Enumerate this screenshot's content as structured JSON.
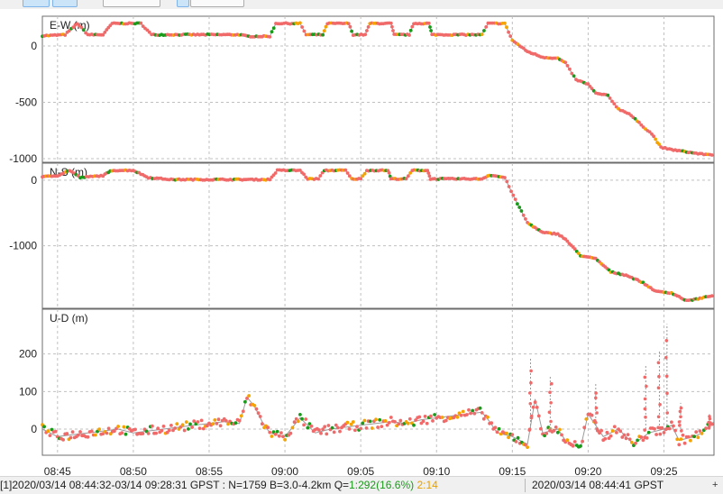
{
  "toolbar": {
    "buttons": [
      {
        "name": "toolbar-button-1",
        "selected": true
      },
      {
        "name": "toolbar-button-2",
        "selected": true
      },
      {
        "name": "toolbar-button-3",
        "selected": false
      },
      {
        "name": "toolbar-button-4",
        "selected": true
      },
      {
        "name": "toolbar-button-5",
        "selected": false
      }
    ]
  },
  "status": {
    "prefix": "[1]",
    "span": "2020/03/14 08:44:32-03/14 09:28:31 GPST : N=1759 B=3.0-4.2km Q=",
    "q1": "1:292(16.6%)",
    "q2": "2:14",
    "cursor_time": "2020/03/14 08:44:41 GPST",
    "grip": "+"
  },
  "colors": {
    "fix": "#1a9a1a",
    "float": "#f5a300",
    "single": "#f06a6a",
    "ref": "#9a9a9a",
    "grid": "#c0c0c0"
  },
  "chart_data": [
    {
      "type": "scatter",
      "label": "E-W (m)",
      "ylim": [
        -1000,
        200
      ],
      "yticks": [
        0,
        -500,
        -1000
      ],
      "xlim": [
        44.0,
        88.3
      ],
      "xticks": [
        "08:45",
        "08:50",
        "08:55",
        "09:00",
        "09:05",
        "09:10",
        "09:15",
        "09:20",
        "09:25"
      ],
      "series_points": [
        [
          44.0,
          90
        ],
        [
          45.5,
          100
        ],
        [
          46.3,
          200
        ],
        [
          47.0,
          100
        ],
        [
          48.0,
          100
        ],
        [
          48.6,
          200
        ],
        [
          50.5,
          200
        ],
        [
          51.2,
          100
        ],
        [
          57.0,
          100
        ],
        [
          57.6,
          85
        ],
        [
          59.0,
          85
        ],
        [
          59.4,
          200
        ],
        [
          61.0,
          200
        ],
        [
          61.4,
          100
        ],
        [
          62.5,
          100
        ],
        [
          62.8,
          200
        ],
        [
          64.2,
          200
        ],
        [
          64.5,
          100
        ],
        [
          65.3,
          100
        ],
        [
          65.6,
          200
        ],
        [
          67.0,
          200
        ],
        [
          67.2,
          100
        ],
        [
          68.2,
          100
        ],
        [
          68.5,
          200
        ],
        [
          69.5,
          200
        ],
        [
          69.7,
          100
        ],
        [
          73.0,
          100
        ],
        [
          73.4,
          200
        ],
        [
          74.5,
          200
        ],
        [
          75.0,
          50
        ],
        [
          76.0,
          -50
        ],
        [
          77.0,
          -100
        ],
        [
          78.0,
          -110
        ],
        [
          78.5,
          -150
        ],
        [
          79.2,
          -300
        ],
        [
          80.0,
          -340
        ],
        [
          80.5,
          -420
        ],
        [
          81.3,
          -440
        ],
        [
          82.0,
          -560
        ],
        [
          82.7,
          -600
        ],
        [
          83.5,
          -700
        ],
        [
          84.2,
          -780
        ],
        [
          84.8,
          -900
        ],
        [
          85.5,
          -920
        ],
        [
          86.5,
          -940
        ],
        [
          87.5,
          -960
        ],
        [
          88.3,
          -965
        ]
      ]
    },
    {
      "type": "scatter",
      "label": "N-S (m)",
      "ylim": [
        -1900,
        150
      ],
      "yticks": [
        0,
        -1000
      ],
      "xlim": [
        44.0,
        88.3
      ],
      "xticks": [],
      "series_points": [
        [
          44.0,
          50
        ],
        [
          45.0,
          70
        ],
        [
          45.8,
          150
        ],
        [
          46.5,
          40
        ],
        [
          48.0,
          70
        ],
        [
          48.6,
          150
        ],
        [
          50.0,
          150
        ],
        [
          51.0,
          40
        ],
        [
          52.5,
          10
        ],
        [
          59.0,
          10
        ],
        [
          59.5,
          150
        ],
        [
          61.0,
          150
        ],
        [
          61.5,
          20
        ],
        [
          62.2,
          20
        ],
        [
          62.6,
          150
        ],
        [
          64.0,
          150
        ],
        [
          64.4,
          20
        ],
        [
          65.0,
          20
        ],
        [
          65.4,
          150
        ],
        [
          66.8,
          150
        ],
        [
          67.0,
          20
        ],
        [
          68.0,
          20
        ],
        [
          68.4,
          150
        ],
        [
          69.4,
          150
        ],
        [
          69.6,
          20
        ],
        [
          73.0,
          20
        ],
        [
          73.5,
          80
        ],
        [
          74.5,
          40
        ],
        [
          75.2,
          -300
        ],
        [
          76.0,
          -650
        ],
        [
          77.0,
          -800
        ],
        [
          78.0,
          -820
        ],
        [
          78.5,
          -900
        ],
        [
          79.5,
          -1150
        ],
        [
          80.5,
          -1200
        ],
        [
          81.5,
          -1400
        ],
        [
          82.5,
          -1450
        ],
        [
          83.5,
          -1550
        ],
        [
          84.5,
          -1700
        ],
        [
          85.5,
          -1720
        ],
        [
          86.5,
          -1840
        ],
        [
          87.5,
          -1800
        ],
        [
          88.3,
          -1750
        ]
      ]
    },
    {
      "type": "scatter",
      "label": "U-D (m)",
      "ylim": [
        -60,
        300
      ],
      "yticks": [
        200,
        100,
        0
      ],
      "xlim": [
        44.0,
        88.3
      ],
      "xticks": [
        "08:45",
        "08:50",
        "08:55",
        "09:00",
        "09:05",
        "09:10",
        "09:15",
        "09:20",
        "09:25"
      ],
      "series_points": [
        [
          44.0,
          0
        ],
        [
          45.0,
          -20
        ],
        [
          46.0,
          -15
        ],
        [
          47.0,
          -10
        ],
        [
          48.0,
          -5
        ],
        [
          49.0,
          0
        ],
        [
          50.0,
          -10
        ],
        [
          51.0,
          -5
        ],
        [
          52.0,
          0
        ],
        [
          53.0,
          5
        ],
        [
          54.0,
          10
        ],
        [
          55.0,
          15
        ],
        [
          56.0,
          20
        ],
        [
          57.0,
          15
        ],
        [
          57.5,
          85
        ],
        [
          58.0,
          60
        ],
        [
          58.5,
          20
        ],
        [
          59.0,
          -10
        ],
        [
          60.0,
          -20
        ],
        [
          61.0,
          30
        ],
        [
          62.0,
          -10
        ],
        [
          63.0,
          0
        ],
        [
          64.0,
          5
        ],
        [
          65.0,
          10
        ],
        [
          66.0,
          15
        ],
        [
          67.0,
          20
        ],
        [
          68.0,
          15
        ],
        [
          69.0,
          25
        ],
        [
          70.0,
          30
        ],
        [
          71.0,
          35
        ],
        [
          72.0,
          40
        ],
        [
          73.0,
          45
        ],
        [
          73.5,
          20
        ],
        [
          74.0,
          -10
        ],
        [
          75.0,
          -20
        ],
        [
          76.0,
          -40
        ],
        [
          76.5,
          80
        ],
        [
          77.0,
          -10
        ],
        [
          78.0,
          0
        ],
        [
          78.5,
          -30
        ],
        [
          79.5,
          -50
        ],
        [
          80.0,
          40
        ],
        [
          81.0,
          -20
        ],
        [
          82.0,
          0
        ],
        [
          83.0,
          -40
        ],
        [
          84.0,
          -10
        ],
        [
          85.0,
          0
        ],
        [
          85.5,
          10
        ],
        [
          86.0,
          -30
        ],
        [
          87.0,
          -20
        ],
        [
          87.5,
          -10
        ],
        [
          88.3,
          20
        ]
      ],
      "spikes": [
        [
          76.2,
          190
        ],
        [
          77.5,
          140
        ],
        [
          80.5,
          120
        ],
        [
          83.8,
          170
        ],
        [
          84.7,
          210
        ],
        [
          85.2,
          280
        ],
        [
          86.1,
          70
        ],
        [
          88.0,
          40
        ]
      ]
    }
  ]
}
